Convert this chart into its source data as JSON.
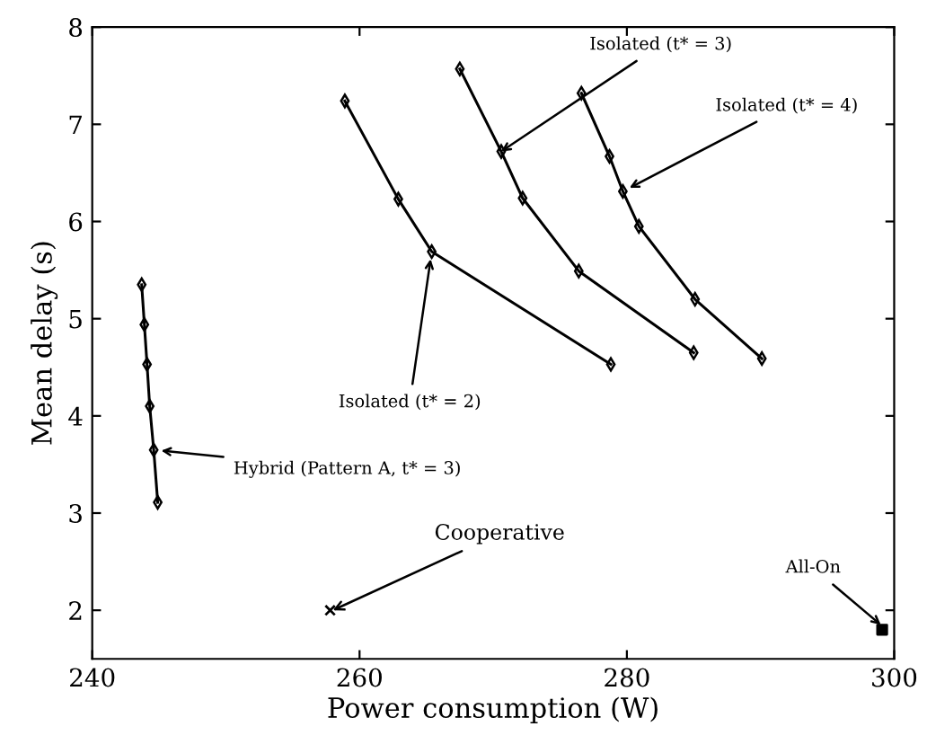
{
  "chart_data": {
    "type": "line",
    "xlabel": "Power consumption (W)",
    "ylabel": "Mean delay (s)",
    "xlim": [
      240,
      300
    ],
    "xticks": [
      240,
      260,
      280,
      300
    ],
    "ylim": [
      1.5,
      8
    ],
    "yticks": [
      2,
      3,
      4,
      5,
      6,
      7,
      8
    ],
    "grid": false,
    "line_style": "solid",
    "series": [
      {
        "color": "#000000",
        "marker": "diamond",
        "x": [
          258.9,
          262.9,
          265.4,
          278.8
        ],
        "values": [
          7.24,
          6.23,
          5.69,
          4.53
        ]
      },
      {
        "color": "#000000",
        "marker": "diamond",
        "x": [
          267.5,
          270.6,
          272.2,
          276.4,
          285.0
        ],
        "values": [
          7.57,
          6.72,
          6.24,
          5.49,
          4.65
        ]
      },
      {
        "color": "#000000",
        "marker": "diamond",
        "x": [
          276.6,
          278.7,
          279.7,
          280.9,
          285.1,
          290.1
        ],
        "values": [
          7.32,
          6.67,
          6.31,
          5.95,
          5.2,
          4.59
        ]
      },
      {
        "color": "#000000",
        "marker": "diamond",
        "x": [
          243.7,
          243.9,
          244.1,
          244.3,
          244.6,
          244.9
        ],
        "values": [
          5.35,
          4.94,
          4.53,
          4.1,
          3.65,
          3.11
        ]
      },
      {
        "type": "scatter",
        "color": "#000000",
        "marker": "cross",
        "x": [
          257.8
        ],
        "values": [
          2.0
        ]
      },
      {
        "type": "scatter",
        "color": "#000000",
        "marker": "square",
        "x": [
          299.1
        ],
        "values": [
          1.8
        ]
      }
    ],
    "annotations": [
      {
        "text": "Isolated (t* = 3)",
        "x": 270.6,
        "y": 6.72
      },
      {
        "text": "Isolated (t* = 4)",
        "x": 279.7,
        "y": 6.31
      },
      {
        "text": "Isolated (t* = 2)",
        "x": 265.4,
        "y": 5.69
      },
      {
        "text": "Hybrid (Pattern A, t* = 3)",
        "x": 244.6,
        "y": 3.65
      },
      {
        "text": "Cooperative",
        "x": 258.0,
        "y": 2.0
      },
      {
        "text": "All-On",
        "x": 299.0,
        "y": 1.85
      }
    ]
  }
}
